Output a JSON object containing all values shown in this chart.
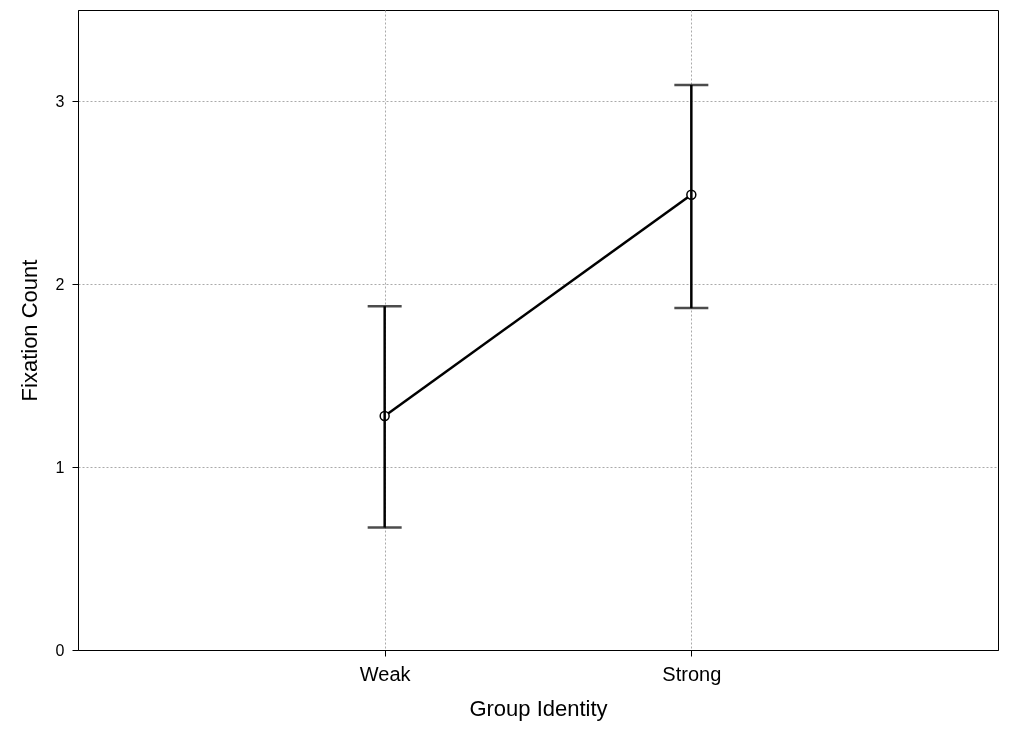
{
  "chart_data": {
    "type": "line",
    "xlabel": "Group Identity",
    "ylabel": "Fixation Count",
    "categories": [
      "Weak",
      "Strong"
    ],
    "values": [
      1.28,
      2.49
    ],
    "errors": [
      [
        0.67,
        1.88
      ],
      [
        1.87,
        3.09
      ]
    ],
    "color": "#000000",
    "ylim": [
      0,
      3.5
    ],
    "yticks": [
      0,
      1,
      2,
      3
    ],
    "grid": true,
    "marker": "circle",
    "line_style": "solid"
  }
}
